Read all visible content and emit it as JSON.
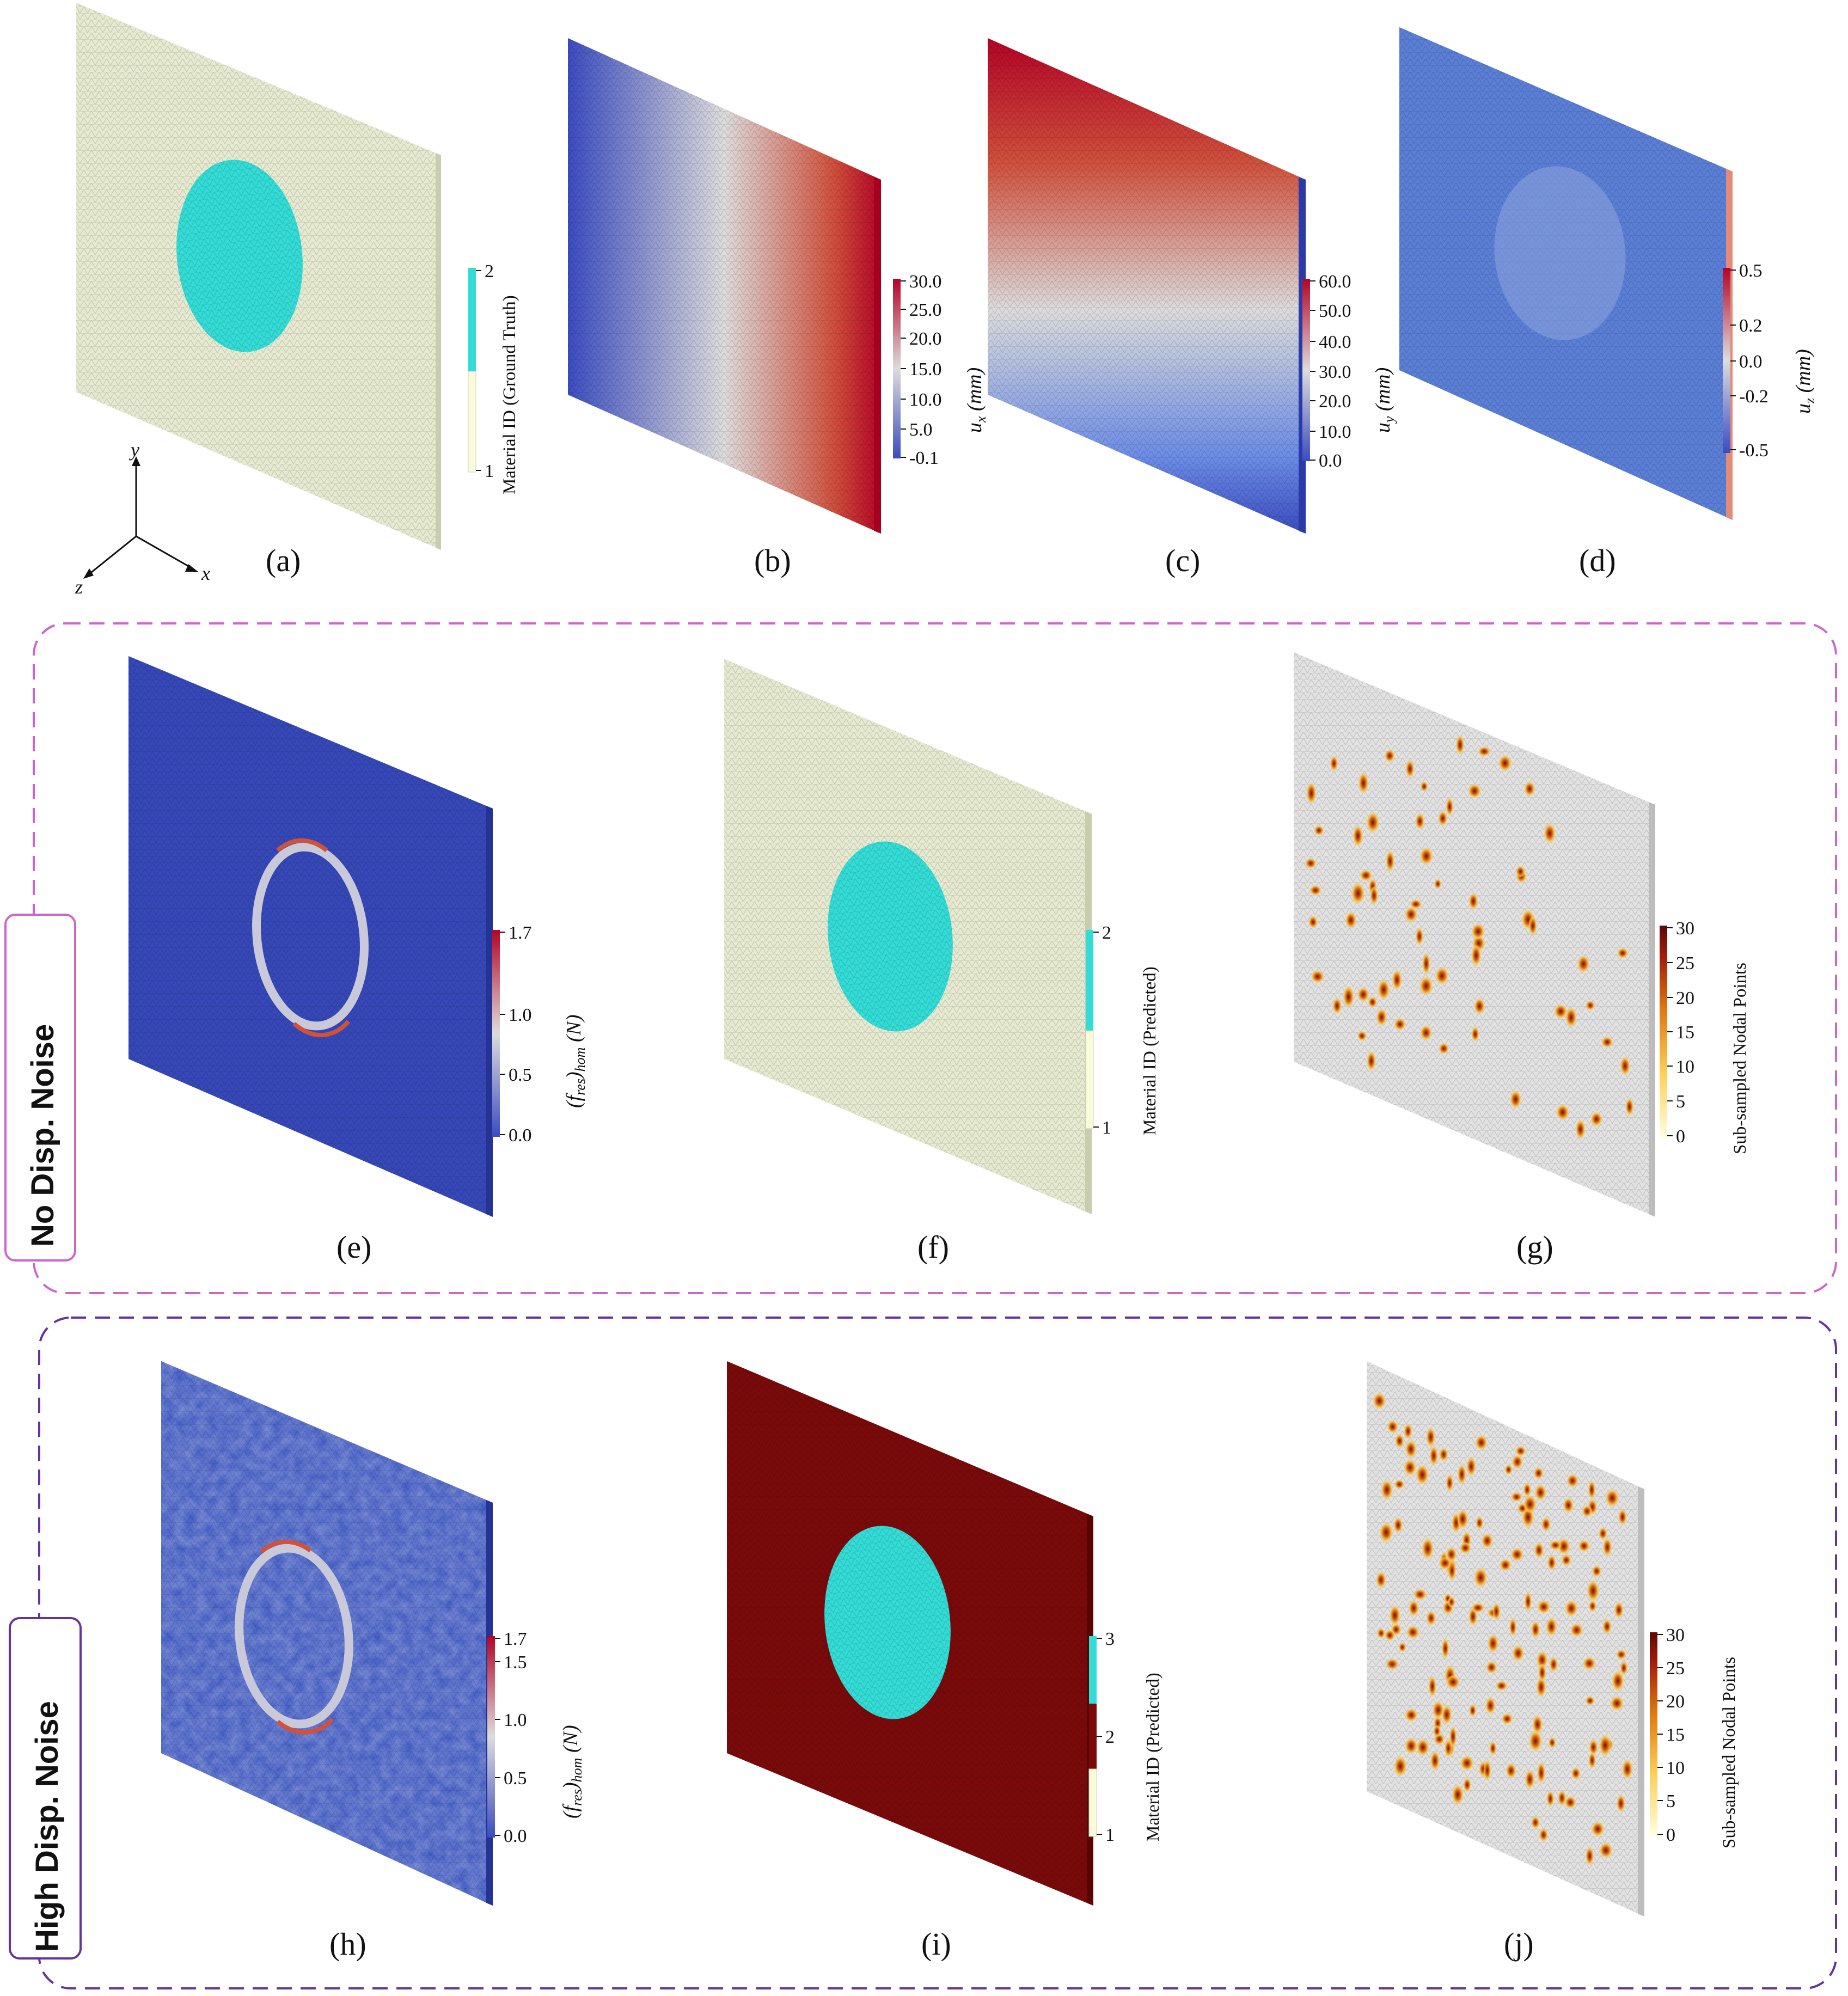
{
  "panels": {
    "a": {
      "letter": "(a)",
      "colorbar": {
        "title": "Material ID (Ground Truth)",
        "ticks": [
          "2",
          "1"
        ]
      }
    },
    "b": {
      "letter": "(b)",
      "colorbar": {
        "title_sym": "u",
        "title_sub": "x",
        "title_unit": "(mm)",
        "ticks": [
          "30.0",
          "25.0",
          "20.0",
          "15.0",
          "10.0",
          "5.0",
          "-0.1"
        ]
      }
    },
    "c": {
      "letter": "(c)",
      "colorbar": {
        "title_sym": "u",
        "title_sub": "y",
        "title_unit": "(mm)",
        "ticks": [
          "60.0",
          "50.0",
          "40.0",
          "30.0",
          "20.0",
          "10.0",
          "0.0"
        ]
      }
    },
    "d": {
      "letter": "(d)",
      "colorbar": {
        "title_sym": "u",
        "title_sub": "z",
        "title_unit": "(mm)",
        "ticks": [
          "0.5",
          "0.2",
          "0.0",
          "-0.2",
          "-0.5"
        ]
      }
    },
    "e": {
      "letter": "(e)",
      "colorbar": {
        "title_main": "(f",
        "title_sub": "res",
        "title_mid": ")",
        "title_sub2": "hom",
        "title_unit": "(N)",
        "ticks": [
          "1.7",
          "1.0",
          "0.5",
          "0.0"
        ]
      }
    },
    "f": {
      "letter": "(f)",
      "colorbar": {
        "title": "Material ID (Predicted)",
        "ticks": [
          "2",
          "1"
        ]
      }
    },
    "g": {
      "letter": "(g)",
      "colorbar": {
        "title": "Sub-sampled Nodal Points",
        "ticks": [
          "30",
          "25",
          "20",
          "15",
          "10",
          "5",
          "0"
        ]
      }
    },
    "h": {
      "letter": "(h)",
      "colorbar": {
        "title_main": "(f",
        "title_sub": "res",
        "title_mid": ")",
        "title_sub2": "hom",
        "title_unit": "(N)",
        "ticks": [
          "1.7",
          "1.5",
          "1.0",
          "0.5",
          "0.0"
        ]
      }
    },
    "i": {
      "letter": "(i)",
      "colorbar": {
        "title": "Material ID (Predicted)",
        "ticks": [
          "3",
          "2",
          "1"
        ]
      }
    },
    "j": {
      "letter": "(j)",
      "colorbar": {
        "title": "Sub-sampled Nodal Points",
        "ticks": [
          "30",
          "25",
          "20",
          "15",
          "10",
          "5",
          "0"
        ]
      }
    }
  },
  "axes": {
    "x": "x",
    "y": "y",
    "z": "z"
  },
  "groups": {
    "no_noise": {
      "label": "No Disp. Noise",
      "color": "#cc66cc"
    },
    "high_noise": {
      "label": "High Disp. Noise",
      "color": "#66339a"
    }
  },
  "colors": {
    "matrix": "#e6ead0",
    "inclusion": "#33dcd6",
    "red_dark": "#7a0a0a",
    "blue": "#3b4fc0",
    "uz_blue": "#5b7fd6",
    "subsample_bg": "#e2e2e2"
  }
}
